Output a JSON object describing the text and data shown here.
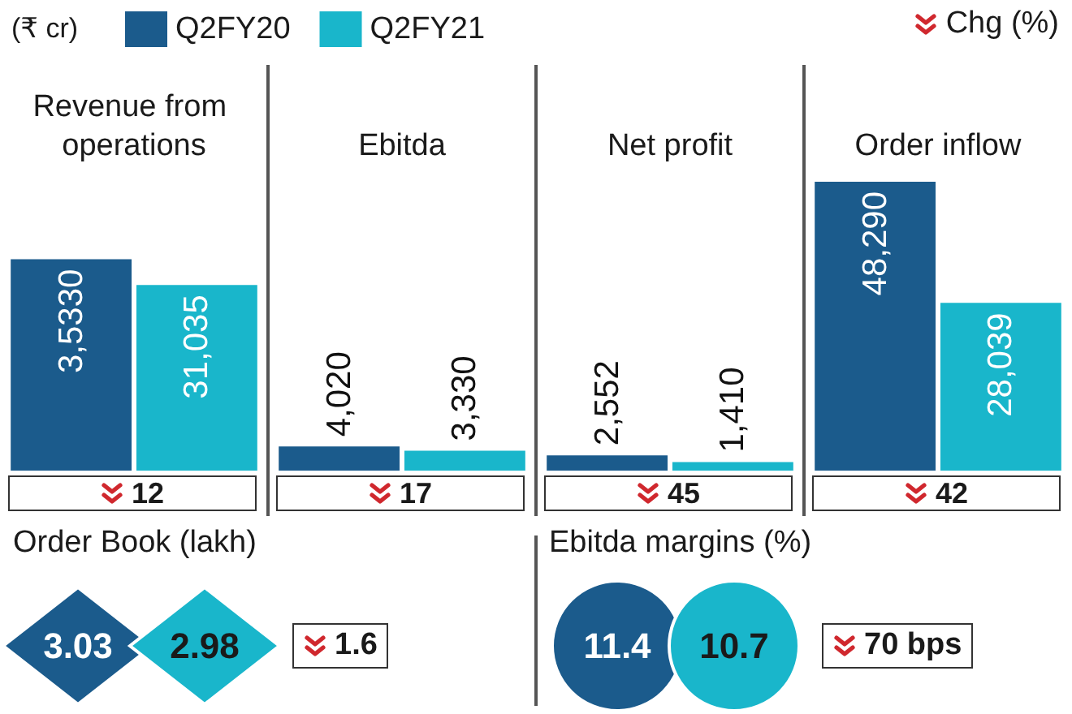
{
  "chart_data": [
    {
      "type": "bar",
      "ylabel": "(₹ cr)",
      "categories": [
        "Revenue from operations",
        "Ebitda",
        "Net profit",
        "Order inflow"
      ],
      "legend": "top",
      "series": [
        {
          "name": "Q2FY20",
          "color": "#1b5b8c",
          "values": [
            35330,
            4020,
            2552,
            48290
          ],
          "value_labels": [
            "3,5330",
            "4,020",
            "2,552",
            "48,290"
          ]
        },
        {
          "name": "Q2FY21",
          "color": "#19b6cb",
          "values": [
            31035,
            3330,
            1410,
            28039
          ],
          "value_labels": [
            "31,035",
            "3,330",
            "1,410",
            "28,039"
          ]
        }
      ],
      "annotations": [
        "Chg (%)",
        "12",
        "17",
        "45",
        "42"
      ]
    },
    {
      "type": "other",
      "title": "Order Book (lakh)",
      "colors": [
        "#1b5b8c",
        "#19b6cb"
      ],
      "annotations": [
        "3.03",
        "2.98",
        "1.6"
      ]
    },
    {
      "type": "other",
      "title": "Ebitda margins (%)",
      "colors": [
        "#1b5b8c",
        "#19b6cb"
      ],
      "annotations": [
        "11.4",
        "10.7",
        "70 bps"
      ]
    }
  ]
}
